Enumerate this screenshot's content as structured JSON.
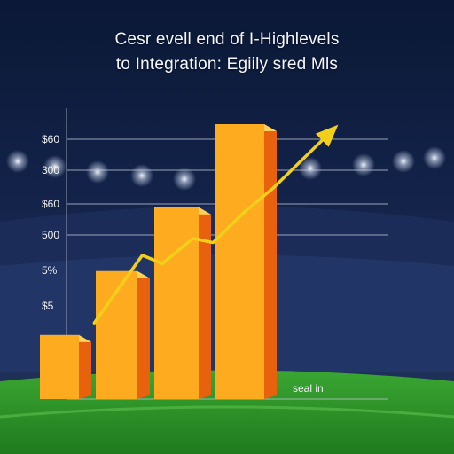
{
  "title_lines": [
    "Cesr evell end of I-Highlevels",
    "to Integration: Egiily sred Mls"
  ],
  "colors": {
    "bar_front": "#ffab1f",
    "bar_side": "#e8620e",
    "bar_top": "#ffd35a",
    "trend": "#f2d01a",
    "gridline": "#c9ced9",
    "sky_top": "#0c1a3a",
    "field": "#2f9a2a"
  },
  "chart_data": {
    "type": "bar",
    "title": "Cesr evell end of I-Highlevels to Integration: Egiily sred Mls",
    "xlabel": "",
    "ylabel": "",
    "y_tick_labels": [
      "$5",
      "5%",
      "500",
      "$60",
      "300",
      "$60"
    ],
    "values": [
      1,
      2,
      3,
      4.3
    ],
    "trend_line": {
      "x": [
        0.55,
        1.5,
        1.9,
        2.5,
        2.9,
        3.5,
        4.1,
        5.3
      ],
      "y": [
        1.8,
        3.4,
        3.2,
        3.8,
        3.7,
        4.4,
        5.0,
        6.4
      ],
      "arrow": true
    },
    "annotation": "seal in",
    "grid": true,
    "ylim": [
      0,
      6.5
    ]
  }
}
